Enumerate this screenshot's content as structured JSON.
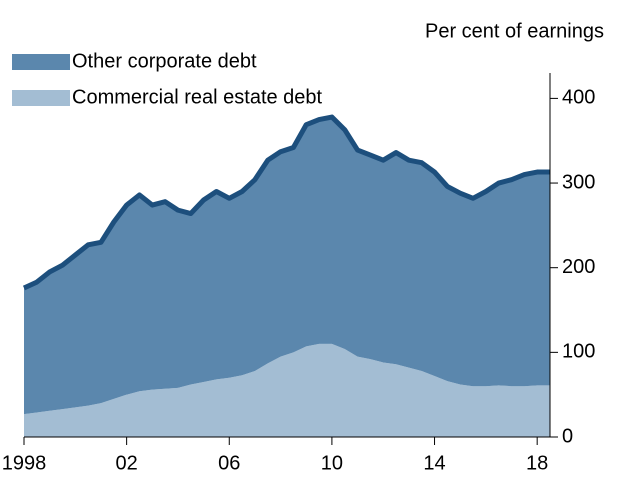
{
  "chart_data": {
    "type": "stacked_area",
    "y_axis_label": "Per cent of earnings",
    "x": [
      1998,
      1998.5,
      1999,
      1999.5,
      2000,
      2000.5,
      2001,
      2001.5,
      2002,
      2002.5,
      2003,
      2003.5,
      2004,
      2004.5,
      2005,
      2005.5,
      2006,
      2006.5,
      2007,
      2007.5,
      2008,
      2008.5,
      2009,
      2009.5,
      2010,
      2010.5,
      2011,
      2011.5,
      2012,
      2012.5,
      2013,
      2013.5,
      2014,
      2014.5,
      2015,
      2015.5,
      2016,
      2016.5,
      2017,
      2017.5,
      2018,
      2018.5
    ],
    "series": [
      {
        "name": "Other corporate debt",
        "color": "#5b87ad",
        "line_color": "#1d4f7d",
        "values": [
          149,
          154,
          164,
          170,
          180,
          190,
          190,
          209,
          224,
          232,
          218,
          221,
          210,
          202,
          215,
          222,
          212,
          217,
          226,
          240,
          242,
          242,
          262,
          265,
          268,
          259,
          244,
          241,
          239,
          250,
          245,
          246,
          241,
          230,
          226,
          222,
          230,
          239,
          244,
          250,
          252,
          252
        ]
      },
      {
        "name": "Commercial real estate debt",
        "color": "#a3bdd3",
        "values": [
          27,
          29,
          31,
          33,
          35,
          37,
          40,
          45,
          50,
          54,
          56,
          57,
          58,
          62,
          65,
          68,
          70,
          73,
          78,
          87,
          95,
          100,
          107,
          110,
          110,
          104,
          95,
          92,
          88,
          86,
          82,
          78,
          72,
          66,
          62,
          60,
          60,
          61,
          60,
          60,
          61,
          61
        ]
      }
    ],
    "stack_order": [
      1,
      0
    ],
    "xlim": [
      1998,
      2018.5
    ],
    "xticks": [
      1998,
      {
        "value": 2002,
        "label": "02"
      },
      {
        "value": 2006,
        "label": "06"
      },
      {
        "value": 2010,
        "label": "10"
      },
      {
        "value": 2014,
        "label": "14"
      },
      {
        "value": 2018,
        "label": "18"
      }
    ],
    "ylim": [
      0,
      430
    ],
    "yticks": [
      0,
      100,
      200,
      300,
      400
    ],
    "y_axis_side": "right",
    "legend": "top-left"
  }
}
